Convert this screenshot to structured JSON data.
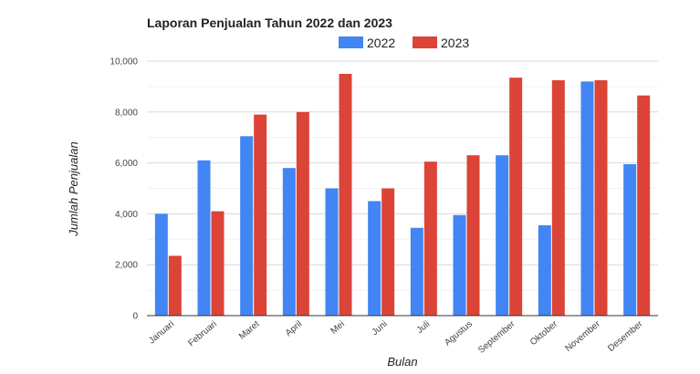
{
  "chart_data": {
    "type": "bar",
    "title": "Laporan Penjualan Tahun 2022 dan 2023",
    "xlabel": "Bulan",
    "ylabel": "Jumlah Penjualan",
    "categories": [
      "Januari",
      "Februari",
      "Maret",
      "April",
      "Mei",
      "Juni",
      "Juli",
      "Agustus",
      "September",
      "Oktober",
      "November",
      "Desember"
    ],
    "series": [
      {
        "name": "2022",
        "color": "#4285f4",
        "values": [
          4000,
          6100,
          7050,
          5800,
          5000,
          4500,
          3450,
          3950,
          6300,
          3550,
          9200,
          5950
        ]
      },
      {
        "name": "2023",
        "color": "#db4437",
        "values": [
          2350,
          4100,
          7900,
          8000,
          9500,
          5000,
          6050,
          6300,
          9350,
          9250,
          9250,
          8650
        ]
      }
    ],
    "ylim": [
      0,
      10000
    ],
    "yticks": [
      "0",
      "2,000",
      "4,000",
      "6,000",
      "8,000",
      "10,000"
    ],
    "ytick_values": [
      0,
      2000,
      4000,
      6000,
      8000,
      10000
    ],
    "grid": true,
    "legend_position": "top-center"
  }
}
